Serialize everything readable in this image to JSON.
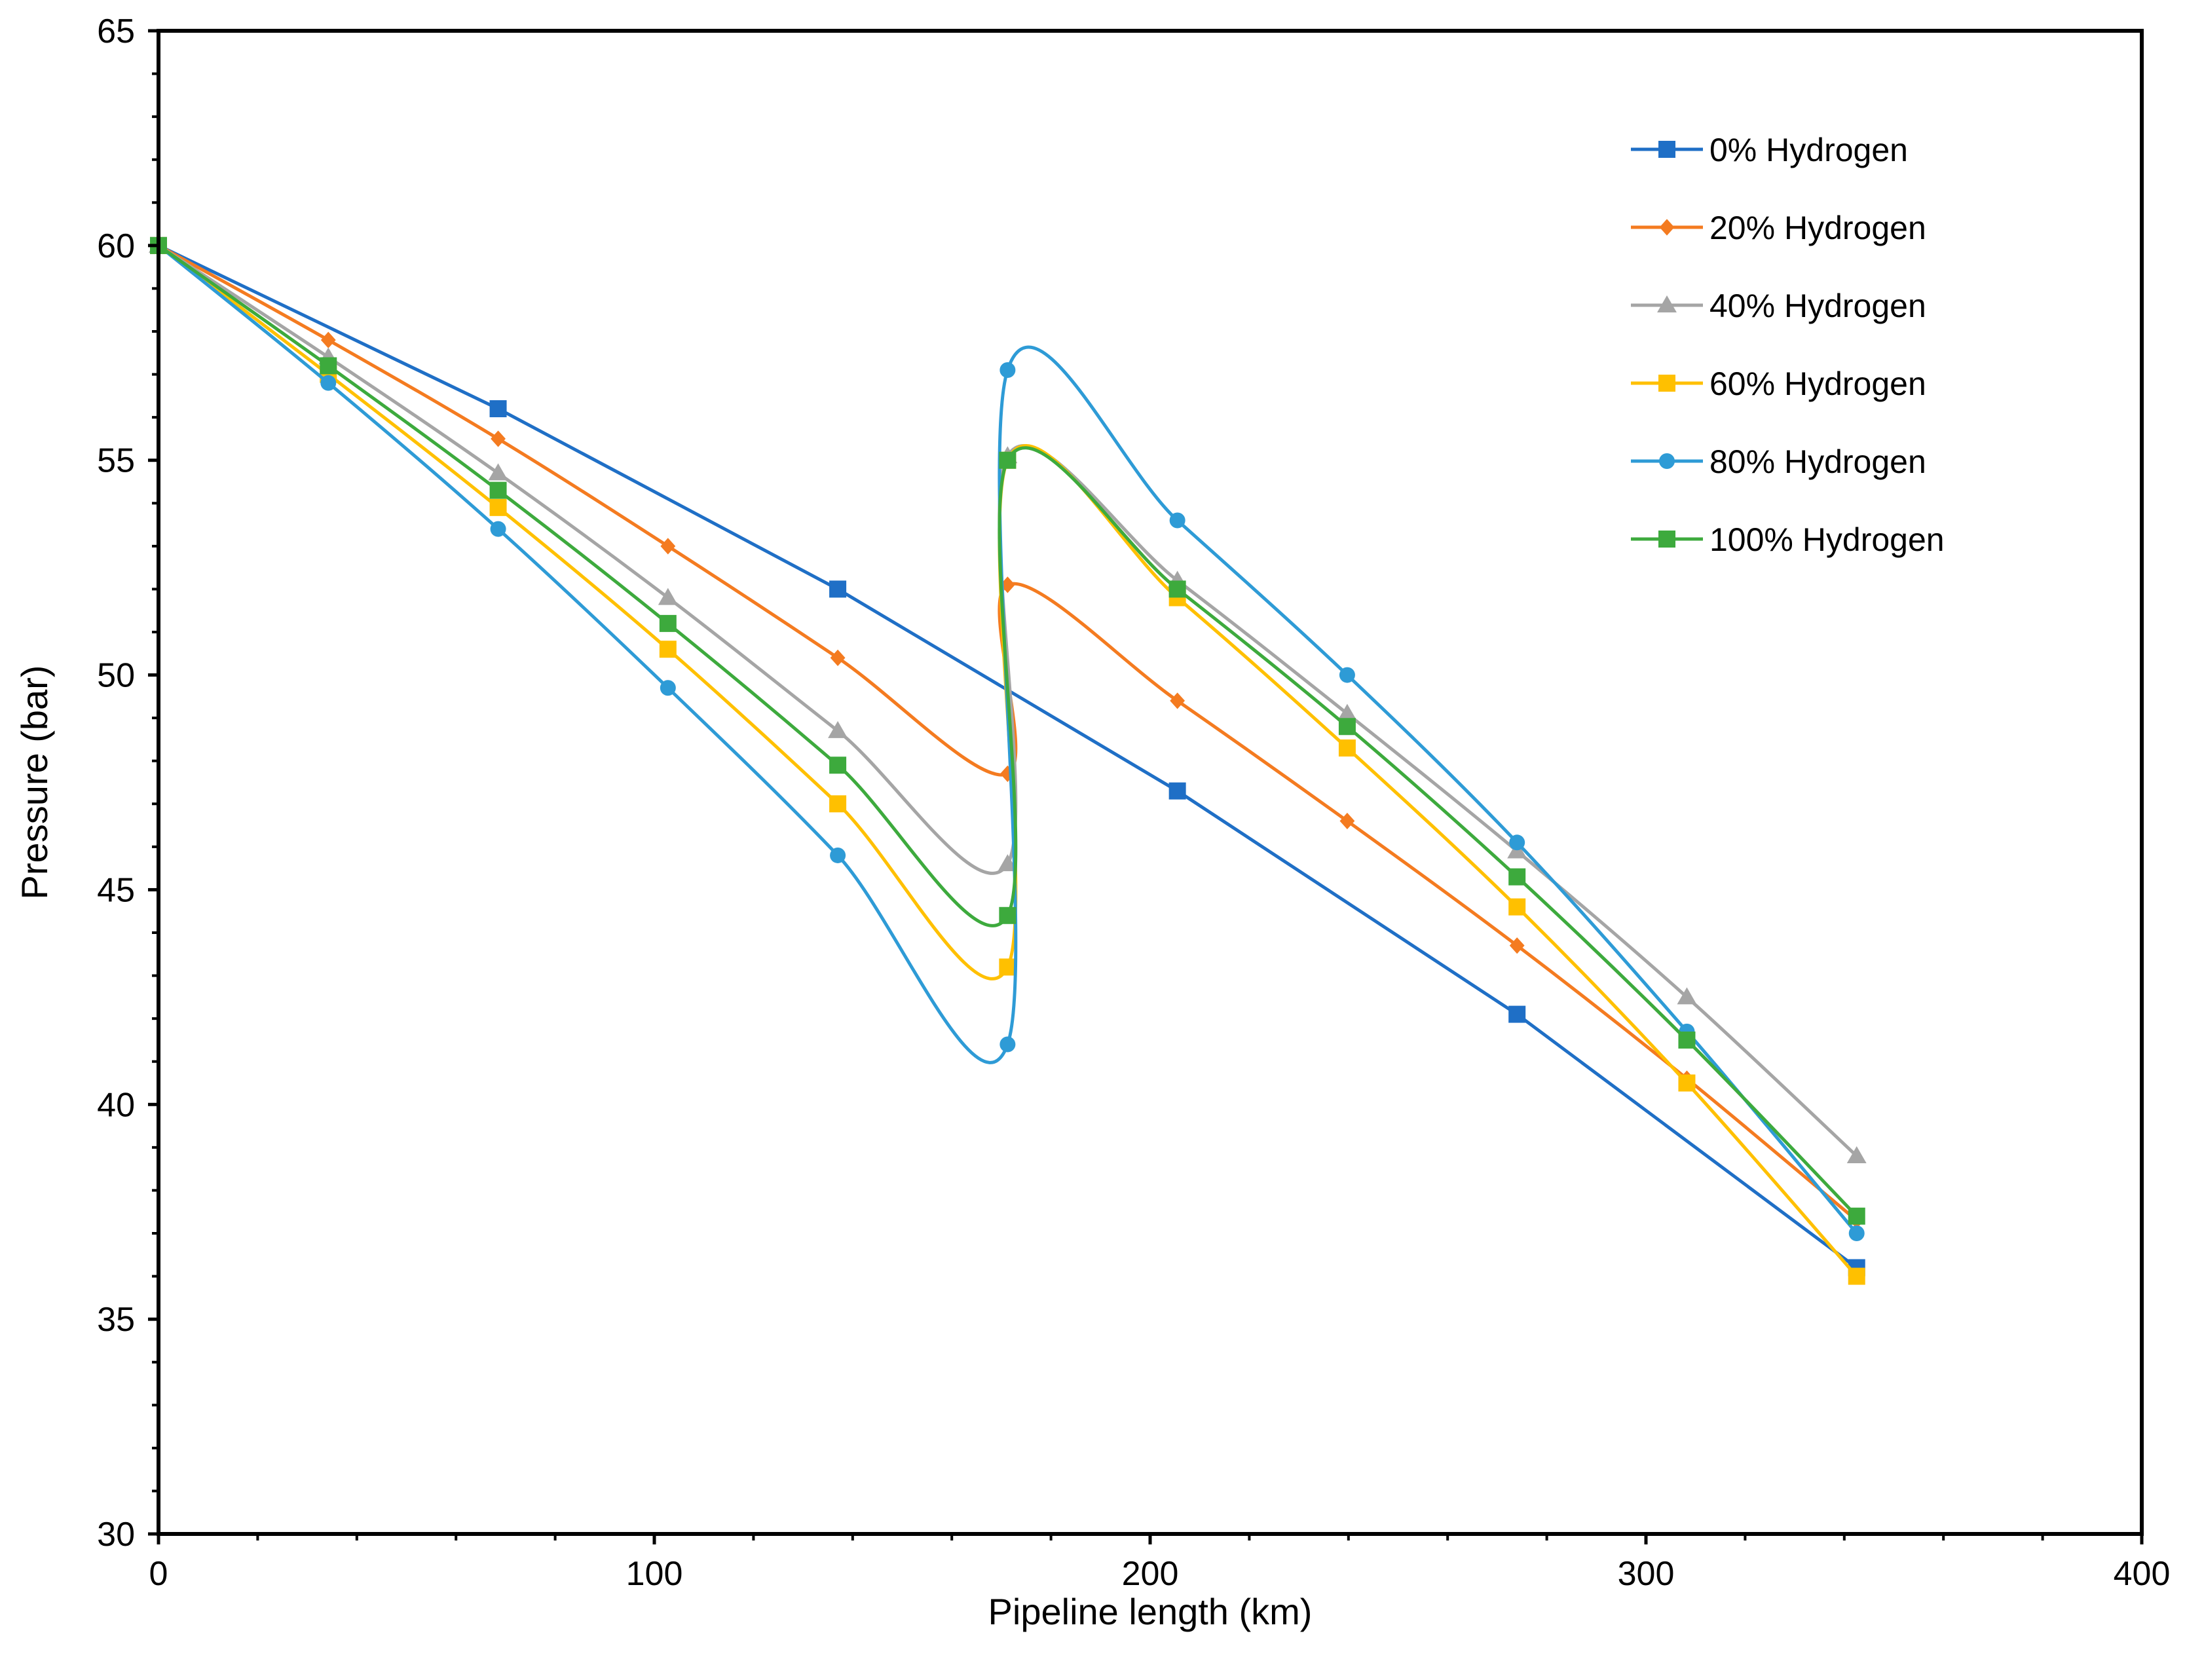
{
  "chart_data": {
    "type": "line",
    "title": "",
    "xlabel": "Pipeline length (km)",
    "ylabel": "Pressure (bar)",
    "xlim": [
      0,
      400
    ],
    "ylim": [
      30,
      65
    ],
    "x_ticks": [
      0,
      100,
      200,
      300,
      400
    ],
    "y_ticks": [
      30,
      35,
      40,
      45,
      50,
      55,
      60,
      65
    ],
    "grid": false,
    "legend_position": "top-right",
    "series": [
      {
        "name": "0% Hydrogen",
        "color": "#1f6fc6",
        "marker": "square",
        "smooth": false,
        "x": [
          0,
          68.5,
          137,
          205.5,
          274,
          342.5
        ],
        "y": [
          60,
          56.2,
          52,
          47.3,
          42.1,
          36.2
        ]
      },
      {
        "name": "20% Hydrogen",
        "color": "#f47b20",
        "marker": "diamond",
        "smooth": true,
        "x": [
          0,
          34.25,
          68.5,
          102.75,
          137,
          171.25,
          171.25,
          205.5,
          239.75,
          274,
          308.25,
          342.5
        ],
        "y": [
          60,
          57.8,
          55.5,
          53,
          50.4,
          47.7,
          52.1,
          49.4,
          46.6,
          43.7,
          40.6,
          37.3
        ]
      },
      {
        "name": "40% Hydrogen",
        "color": "#a5a5a5",
        "marker": "triangle",
        "smooth": true,
        "x": [
          0,
          34.25,
          68.5,
          102.75,
          137,
          171.25,
          171.25,
          205.5,
          239.75,
          274,
          308.25,
          342.5
        ],
        "y": [
          60,
          57.4,
          54.7,
          51.8,
          48.7,
          45.6,
          55.1,
          52.2,
          49.1,
          45.9,
          42.5,
          38.8
        ]
      },
      {
        "name": "60% Hydrogen",
        "color": "#ffc000",
        "marker": "square",
        "smooth": true,
        "x": [
          0,
          34.25,
          68.5,
          102.75,
          137,
          171.25,
          171.25,
          205.5,
          239.75,
          274,
          308.25,
          342.5
        ],
        "y": [
          60,
          57,
          53.9,
          50.6,
          47,
          43.2,
          55,
          51.8,
          48.3,
          44.6,
          40.5,
          36
        ]
      },
      {
        "name": "80% Hydrogen",
        "color": "#2e9bd6",
        "marker": "circle",
        "smooth": true,
        "x": [
          0,
          34.25,
          68.5,
          102.75,
          137,
          171.25,
          171.25,
          205.5,
          239.75,
          274,
          308.25,
          342.5
        ],
        "y": [
          60,
          56.8,
          53.4,
          49.7,
          45.8,
          41.4,
          57.1,
          53.6,
          50,
          46.1,
          41.7,
          37
        ]
      },
      {
        "name": "100% Hydrogen",
        "color": "#3daa3d",
        "marker": "square",
        "smooth": true,
        "x": [
          0,
          34.25,
          68.5,
          102.75,
          137,
          171.25,
          171.25,
          205.5,
          239.75,
          274,
          308.25,
          342.5
        ],
        "y": [
          60,
          57.2,
          54.3,
          51.2,
          47.9,
          44.4,
          55,
          52,
          48.8,
          45.3,
          41.5,
          37.4
        ]
      }
    ]
  }
}
